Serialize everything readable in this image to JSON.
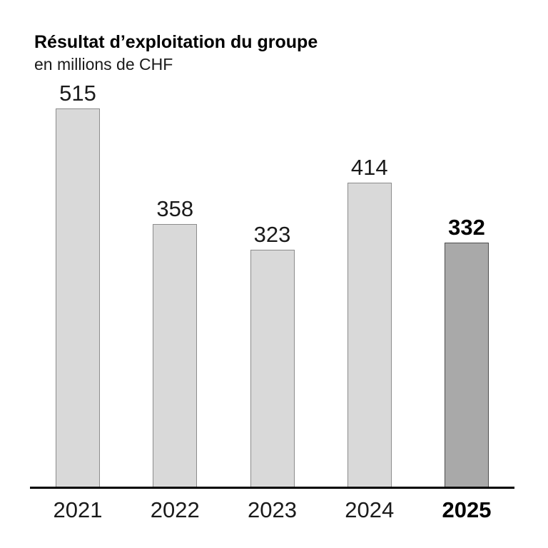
{
  "header": {
    "title": "Résultat d’exploitation du groupe",
    "subtitle": "en millions de CHF"
  },
  "chart_data": {
    "type": "bar",
    "categories": [
      "2021",
      "2022",
      "2023",
      "2024",
      "2025"
    ],
    "values": [
      515,
      358,
      323,
      414,
      332
    ],
    "title": "Résultat d’exploitation du groupe",
    "xlabel": "",
    "ylabel": "en millions de CHF",
    "ylim": [
      0,
      515
    ],
    "grid": false,
    "legend": false,
    "data_labels": [
      "515",
      "358",
      "323",
      "414",
      "332"
    ],
    "highlight_index": 4,
    "highlight_note": "2025 bar emphasized with darker fill and bold labels",
    "colors": {
      "bar_fill": "#d9d9d9",
      "bar_border": "#8c8c8c",
      "highlight_fill": "#a9a9a9",
      "highlight_border": "#4d4d4d",
      "axis_line": "#000000",
      "text": "#1a1a1a"
    }
  }
}
